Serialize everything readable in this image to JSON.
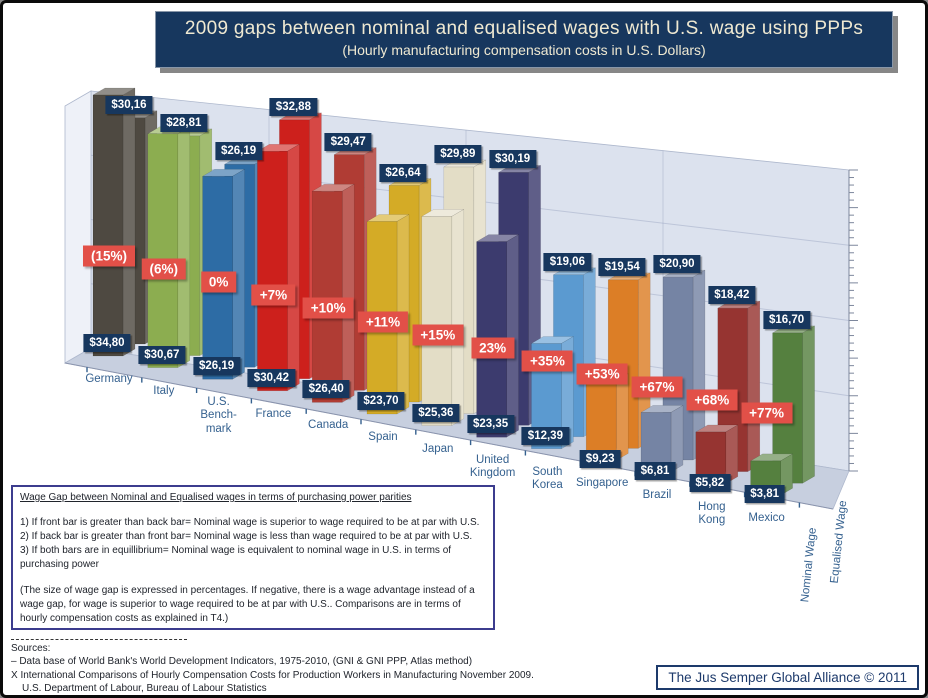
{
  "header": {
    "title": "2009 gaps between nominal and equalised wages with U.S. wage using PPPs",
    "subtitle": "(Hourly manufacturing compensation costs in U.S. Dollars)"
  },
  "chart_data": {
    "type": "bar",
    "style": "3d-perspective-column-pairs",
    "title": "2009 gaps between nominal and equalised wages with U.S. wage using PPPs",
    "subtitle": "(Hourly manufacturing compensation costs in U.S. Dollars)",
    "categories": [
      "Germany",
      "Italy",
      "U.S. Benchmark",
      "France",
      "Canada",
      "Spain",
      "Japan",
      "United Kingdom",
      "South Korea",
      "Singapore",
      "Brazil",
      "Hong Kong",
      "Mexico"
    ],
    "category_display": [
      [
        "Germany"
      ],
      [
        "Italy"
      ],
      [
        "U.S.",
        "Bench-",
        "mark"
      ],
      [
        "France"
      ],
      [
        "Canada"
      ],
      [
        "Spain"
      ],
      [
        "Japan"
      ],
      [
        "United",
        "Kingdom"
      ],
      [
        "South",
        "Korea"
      ],
      [
        "Singapore"
      ],
      [
        "Brazil"
      ],
      [
        "Hong",
        "Kong"
      ],
      [
        "Mexico"
      ]
    ],
    "series": [
      {
        "name": "Nominal Wage",
        "row": "front",
        "values": [
          34.8,
          30.67,
          26.19,
          30.42,
          26.4,
          23.7,
          25.36,
          23.35,
          12.39,
          9.23,
          6.81,
          5.82,
          3.81
        ],
        "labels": [
          "$34,80",
          "$30,67",
          "$26,19",
          "$30,42",
          "$26,40",
          "$23,70",
          "$25,36",
          "$23,35",
          "$12,39",
          "$9,23",
          "$6,81",
          "$5,82",
          "$3,81"
        ]
      },
      {
        "name": "Equalised Wage",
        "row": "back",
        "values": [
          30.16,
          28.81,
          26.19,
          32.88,
          29.47,
          26.64,
          29.89,
          30.19,
          19.06,
          19.54,
          20.9,
          18.42,
          16.7
        ],
        "labels": [
          "$30,16",
          "$28,81",
          "$26,19",
          "$32,88",
          "$29,47",
          "$26,64",
          "$29,89",
          "$30,19",
          "$19,06",
          "$19,54",
          "$20,90",
          "$18,42",
          "$16,70"
        ]
      }
    ],
    "gap_labels": [
      "(15%)",
      "(6%)",
      "0%",
      "+7%",
      "+10%",
      "+11%",
      "+15%",
      "23%",
      "+35%",
      "+53%",
      "+67%",
      "+68%",
      "+77%"
    ],
    "bar_colors": [
      "#4e4941",
      "#8cad50",
      "#2d6ca5",
      "#cd201c",
      "#b03c34",
      "#d4ab26",
      "#e3ddc6",
      "#3c3b6e",
      "#5b9ad0",
      "#dc7e26",
      "#7584a4",
      "#963431",
      "#55803f"
    ],
    "colors": {
      "value_label_bg": "#17375e",
      "value_label_text": "#ffffff",
      "gap_label_bg": "#e25048",
      "gap_label_text": "#ffffff",
      "wall": "#dce2ee",
      "side_wall": "#eef1f8",
      "floor": "#c7cfdf",
      "grid": "#aeb8cd",
      "category_text": "#35618f",
      "axis": "#8a94ad"
    },
    "y_axis": {
      "labels_visible": false,
      "ticks": true,
      "approx_range_usd": [
        0,
        40
      ]
    },
    "legend_position": "rotated-row-labels-bottom-right",
    "grid": true
  },
  "note_box": {
    "heading": "Wage Gap between Nominal and Equalised wages in terms of purchasing power parities",
    "line1": "1) If front bar is greater than back bar= Nominal wage is superior to wage required to be at par with U.S.",
    "line2": "2) If back bar is greater than front bar= Nominal wage is less than wage  required to be at par with U.S.",
    "line3": "3) If both bars are in equillibrium=  Nominal wage is equivalent to nominal wage in U.S. in terms of purchasing power",
    "paragraph": "(The size of wage gap is expressed in percentages.  If negative, there is a wage advantage instead of a wage gap, for wage is superior to wage required to be at par with U.S.. Comparisons are in terms of hourly compensation costs as explained in T4.)"
  },
  "sources": {
    "heading": "Sources:",
    "line1": "– Data base of World Bank's World Development Indicators, 1975-2010, (GNI & GNI PPP, Atlas method)",
    "line2": "X International Comparisons of Hourly Compensation Costs for Production Workers in Manufacturing November 2009.",
    "line3": "U.S. Department of Labour, Bureau of Labour Statistics"
  },
  "credit": {
    "text": "The Jus Semper Global Alliance © 2011"
  }
}
